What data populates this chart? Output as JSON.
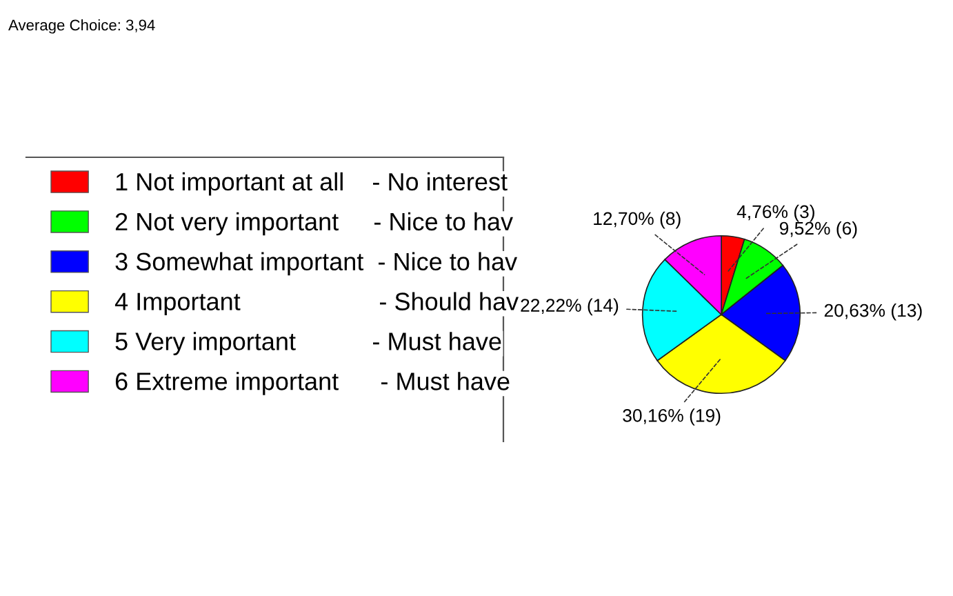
{
  "chart_data": {
    "type": "pie",
    "title": "Average Choice: 3,94",
    "categories": [
      "1 Not important at all    - No interest",
      "2 Not very important     - Nice to hav",
      "3 Somewhat important  - Nice to hav",
      "4 Important                    - Should hav",
      "5 Very important           - Must have",
      "6 Extreme important      - Must have"
    ],
    "values": [
      3,
      6,
      13,
      19,
      14,
      8
    ],
    "value_labels": [
      "4,76% (3)",
      "9,52% (6)",
      "20,63% (13)",
      "30,16% (19)",
      "22,22% (14)",
      "12,70% (8)"
    ],
    "colors": [
      "#ff0000",
      "#00ff00",
      "#0000ff",
      "#ffff00",
      "#00ffff",
      "#ff00ff"
    ],
    "legend": "left"
  }
}
